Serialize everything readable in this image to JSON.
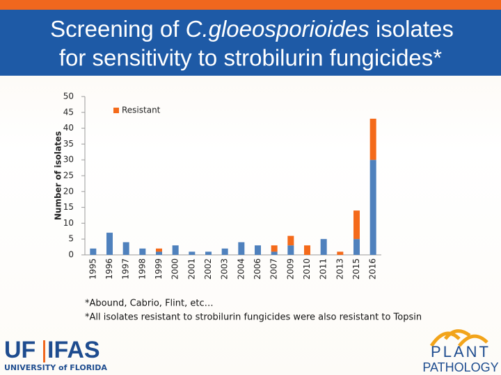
{
  "title": {
    "line1": [
      "Screening of ",
      "C.gloeosporioides",
      " isolates"
    ],
    "line2": "for sensitivity to strobilurin fungicides*"
  },
  "chart_data": {
    "type": "stacked_bar",
    "y_label": "Number of isolates",
    "categories": [
      "1995",
      "1996",
      "1997",
      "1998",
      "1999",
      "2000",
      "2001",
      "2002",
      "2003",
      "2004",
      "2006",
      "2007",
      "2009",
      "2010",
      "2011",
      "2013",
      "2015",
      "2016"
    ],
    "series": [
      {
        "color": "#4f81bd",
        "values": [
          2,
          7,
          4,
          2,
          1,
          3,
          1,
          1,
          2,
          4,
          3,
          1,
          3,
          0,
          5,
          0,
          5,
          30
        ]
      },
      {
        "name": "Resistant",
        "color": "#f46a1a",
        "values": [
          0,
          0,
          0,
          0,
          1,
          0,
          0,
          0,
          0,
          0,
          0,
          2,
          3,
          3,
          0,
          1,
          9,
          13
        ]
      }
    ],
    "ylim": [
      0,
      50
    ],
    "yticks": [
      0,
      5,
      10,
      15,
      20,
      25,
      30,
      35,
      40,
      45,
      50
    ],
    "legend": "top-left"
  },
  "notes": [
    "*Abound, Cabrio, Flint, etc…",
    "*All isolates resistant to strobilurin fungicides were also resistant to Topsin"
  ],
  "logos": {
    "uf": "UF",
    "ifas": "IFAS",
    "university": "UNIVERSITY of FLORIDA",
    "plant": "PLANT",
    "pathology": "PATHOLOGY"
  }
}
